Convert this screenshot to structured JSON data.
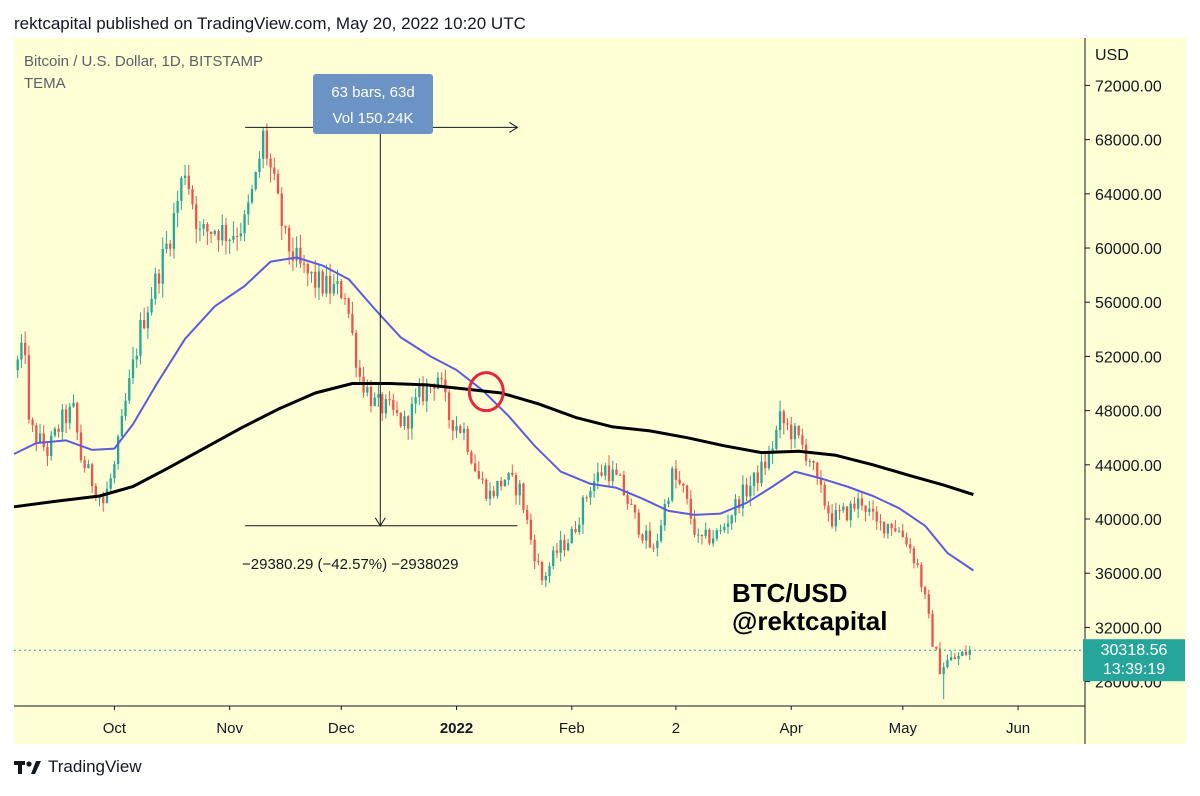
{
  "publisher_line": "rektcapital published on TradingView.com, May 20, 2022 10:20 UTC",
  "symbol_title": "Bitcoin / U.S. Dollar, 1D, BITSTAMP",
  "indicator_name": "TEMA",
  "currency_label": "USD",
  "measure_box": {
    "line1": "63 bars, 63d",
    "line2": "Vol 150.24K"
  },
  "measure_result": "−29380.29 (−42.57%) −2938029",
  "watermark": {
    "line1": "BTC/USD",
    "line2": "@rektcapital"
  },
  "last_price": {
    "price": "30318.56",
    "countdown": "13:39:19",
    "value": 30318.56
  },
  "footer": {
    "logo_mark": "TV",
    "brand": "TradingView"
  },
  "colors": {
    "background": "#ffffd5",
    "up_candle": "#26a69a",
    "down_candle": "#ef5350",
    "tema_fast": "#5b5bdc",
    "tema_slow": "#000000",
    "crossover_marker": "#e8273f",
    "measure_box": "#6b93c4",
    "last_price_tag": "#26a69a"
  },
  "chart_data": {
    "type": "candlestick",
    "y_axis": {
      "label": "USD",
      "ticks": [
        28000,
        32000,
        36000,
        40000,
        44000,
        48000,
        52000,
        56000,
        60000,
        64000,
        68000,
        72000
      ],
      "tick_labels": [
        "28000.00",
        "32000.00",
        "36000.00",
        "40000.00",
        "44000.00",
        "48000.00",
        "52000.00",
        "56000.00",
        "60000.00",
        "64000.00",
        "68000.00",
        "72000.00"
      ],
      "ylim": [
        26200,
        75500
      ]
    },
    "x_axis": {
      "range": [
        "2021-09-04",
        "2022-06-19"
      ],
      "ticks": [
        {
          "date": "2021-10-01",
          "label": "Oct",
          "bold": false
        },
        {
          "date": "2021-11-01",
          "label": "Nov",
          "bold": false
        },
        {
          "date": "2021-12-01",
          "label": "Dec",
          "bold": false
        },
        {
          "date": "2022-01-01",
          "label": "2022",
          "bold": true
        },
        {
          "date": "2022-02-01",
          "label": "Feb",
          "bold": false
        },
        {
          "date": "2022-03-01",
          "label": "2",
          "bold": false
        },
        {
          "date": "2022-04-01",
          "label": "Apr",
          "bold": false
        },
        {
          "date": "2022-05-01",
          "label": "May",
          "bold": false
        },
        {
          "date": "2022-06-01",
          "label": "Jun",
          "bold": false
        }
      ]
    },
    "price_path": [
      [
        "2021-09-05",
        51500
      ],
      [
        "2021-09-07",
        52700
      ],
      [
        "2021-09-08",
        46800
      ],
      [
        "2021-09-13",
        45000
      ],
      [
        "2021-09-17",
        47300
      ],
      [
        "2021-09-20",
        48000
      ],
      [
        "2021-09-22",
        44500
      ],
      [
        "2021-09-25",
        42800
      ],
      [
        "2021-09-28",
        41200
      ],
      [
        "2021-10-01",
        43800
      ],
      [
        "2021-10-04",
        48500
      ],
      [
        "2021-10-08",
        54000
      ],
      [
        "2021-10-12",
        57500
      ],
      [
        "2021-10-16",
        61000
      ],
      [
        "2021-10-20",
        66000
      ],
      [
        "2021-10-24",
        61000
      ],
      [
        "2021-10-28",
        61500
      ],
      [
        "2021-11-01",
        61000
      ],
      [
        "2021-11-05",
        61800
      ],
      [
        "2021-11-08",
        65000
      ],
      [
        "2021-11-10",
        68200
      ],
      [
        "2021-11-13",
        64500
      ],
      [
        "2021-11-16",
        60500
      ],
      [
        "2021-11-20",
        58500
      ],
      [
        "2021-11-24",
        57500
      ],
      [
        "2021-11-28",
        57000
      ],
      [
        "2021-12-02",
        56800
      ],
      [
        "2021-12-04",
        53500
      ],
      [
        "2021-12-06",
        50500
      ],
      [
        "2021-12-10",
        48500
      ],
      [
        "2021-12-14",
        48000
      ],
      [
        "2021-12-18",
        47000
      ],
      [
        "2021-12-22",
        49000
      ],
      [
        "2021-12-27",
        50600
      ],
      [
        "2021-12-30",
        47500
      ],
      [
        "2022-01-03",
        46500
      ],
      [
        "2022-01-07",
        43000
      ],
      [
        "2022-01-10",
        41800
      ],
      [
        "2022-01-14",
        43000
      ],
      [
        "2022-01-18",
        42200
      ],
      [
        "2022-01-21",
        38500
      ],
      [
        "2022-01-24",
        35500
      ],
      [
        "2022-01-28",
        37600
      ],
      [
        "2022-02-01",
        38800
      ],
      [
        "2022-02-06",
        42500
      ],
      [
        "2022-02-10",
        43800
      ],
      [
        "2022-02-14",
        42600
      ],
      [
        "2022-02-18",
        40000
      ],
      [
        "2022-02-23",
        37500
      ],
      [
        "2022-02-28",
        43200
      ],
      [
        "2022-03-03",
        42000
      ],
      [
        "2022-03-07",
        38300
      ],
      [
        "2022-03-13",
        39000
      ],
      [
        "2022-03-18",
        41500
      ],
      [
        "2022-03-22",
        42800
      ],
      [
        "2022-03-26",
        44500
      ],
      [
        "2022-03-29",
        47300
      ],
      [
        "2022-04-02",
        46200
      ],
      [
        "2022-04-06",
        44500
      ],
      [
        "2022-04-08",
        42500
      ],
      [
        "2022-04-12",
        40000
      ],
      [
        "2022-04-16",
        40500
      ],
      [
        "2022-04-20",
        41400
      ],
      [
        "2022-04-24",
        39500
      ],
      [
        "2022-04-28",
        39700
      ],
      [
        "2022-05-02",
        38500
      ],
      [
        "2022-05-05",
        36500
      ],
      [
        "2022-05-07",
        34000
      ],
      [
        "2022-05-09",
        31000
      ],
      [
        "2022-05-11",
        29000
      ],
      [
        "2022-05-13",
        29500
      ],
      [
        "2022-05-16",
        29800
      ],
      [
        "2022-05-19",
        30318.56
      ]
    ],
    "candle_extremes": {
      "high": {
        "date": "2021-11-10",
        "value": 68900
      },
      "low": {
        "date": "2022-05-12",
        "value": 26700
      }
    },
    "series": [
      {
        "name": "TEMA",
        "color": "#5b5bdc",
        "points": [
          [
            "2021-09-04",
            44800
          ],
          [
            "2021-09-10",
            45600
          ],
          [
            "2021-09-18",
            45800
          ],
          [
            "2021-09-25",
            45100
          ],
          [
            "2021-10-01",
            45200
          ],
          [
            "2021-10-06",
            47000
          ],
          [
            "2021-10-12",
            49800
          ],
          [
            "2021-10-20",
            53300
          ],
          [
            "2021-10-28",
            55700
          ],
          [
            "2021-11-05",
            57200
          ],
          [
            "2021-11-12",
            59000
          ],
          [
            "2021-11-19",
            59300
          ],
          [
            "2021-11-26",
            58700
          ],
          [
            "2021-12-03",
            57700
          ],
          [
            "2021-12-10",
            55500
          ],
          [
            "2021-12-17",
            53400
          ],
          [
            "2021-12-25",
            52000
          ],
          [
            "2022-01-01",
            51000
          ],
          [
            "2022-01-08",
            49500
          ],
          [
            "2022-01-15",
            47600
          ],
          [
            "2022-01-22",
            45400
          ],
          [
            "2022-01-29",
            43500
          ],
          [
            "2022-02-06",
            42600
          ],
          [
            "2022-02-13",
            42300
          ],
          [
            "2022-02-20",
            41500
          ],
          [
            "2022-02-27",
            40600
          ],
          [
            "2022-03-06",
            40300
          ],
          [
            "2022-03-13",
            40400
          ],
          [
            "2022-03-20",
            41200
          ],
          [
            "2022-03-27",
            42400
          ],
          [
            "2022-04-02",
            43500
          ],
          [
            "2022-04-09",
            43000
          ],
          [
            "2022-04-16",
            42400
          ],
          [
            "2022-04-23",
            41700
          ],
          [
            "2022-04-30",
            40800
          ],
          [
            "2022-05-07",
            39500
          ],
          [
            "2022-05-13",
            37500
          ],
          [
            "2022-05-20",
            36200
          ]
        ]
      },
      {
        "name": "",
        "color": "#000000",
        "points": [
          [
            "2021-09-04",
            40900
          ],
          [
            "2021-09-15",
            41300
          ],
          [
            "2021-09-27",
            41700
          ],
          [
            "2021-10-06",
            42400
          ],
          [
            "2021-10-15",
            43700
          ],
          [
            "2021-10-25",
            45200
          ],
          [
            "2021-11-04",
            46700
          ],
          [
            "2021-11-14",
            48100
          ],
          [
            "2021-11-24",
            49300
          ],
          [
            "2021-12-04",
            50000
          ],
          [
            "2021-12-14",
            50000
          ],
          [
            "2021-12-24",
            49900
          ],
          [
            "2022-01-03",
            49600
          ],
          [
            "2022-01-13",
            49300
          ],
          [
            "2022-01-23",
            48500
          ],
          [
            "2022-02-02",
            47500
          ],
          [
            "2022-02-12",
            46800
          ],
          [
            "2022-02-22",
            46500
          ],
          [
            "2022-03-04",
            46000
          ],
          [
            "2022-03-14",
            45400
          ],
          [
            "2022-03-24",
            44900
          ],
          [
            "2022-04-03",
            45000
          ],
          [
            "2022-04-13",
            44700
          ],
          [
            "2022-04-23",
            44000
          ],
          [
            "2022-05-03",
            43200
          ],
          [
            "2022-05-12",
            42500
          ],
          [
            "2022-05-20",
            41800
          ]
        ]
      }
    ],
    "annotations": {
      "crossover": {
        "date": "2022-01-09",
        "value": 49400
      },
      "measure": {
        "start": {
          "date": "2021-11-10",
          "value": 68900
        },
        "end": {
          "date": "2022-01-12",
          "value": 39500
        }
      }
    }
  }
}
